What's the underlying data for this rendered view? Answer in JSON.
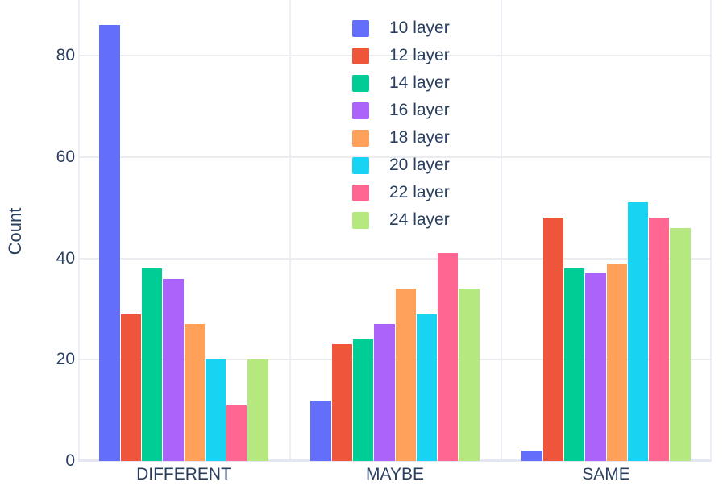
{
  "chart_data": {
    "type": "bar",
    "bar_mode": "group",
    "title": "",
    "xlabel": "",
    "ylabel": "Count",
    "categories": [
      "DIFFERENT",
      "MAYBE",
      "SAME"
    ],
    "series": [
      {
        "name": "10 layer",
        "color": "#636EFA",
        "values": [
          86,
          12,
          2
        ]
      },
      {
        "name": "12 layer",
        "color": "#EF553B",
        "values": [
          29,
          23,
          48
        ]
      },
      {
        "name": "14 layer",
        "color": "#00CC96",
        "values": [
          38,
          24,
          38
        ]
      },
      {
        "name": "16 layer",
        "color": "#AB63FA",
        "values": [
          36,
          27,
          37
        ]
      },
      {
        "name": "18 layer",
        "color": "#FFA15A",
        "values": [
          27,
          34,
          39
        ]
      },
      {
        "name": "20 layer",
        "color": "#19D3F3",
        "values": [
          20,
          29,
          51
        ]
      },
      {
        "name": "22 layer",
        "color": "#FF6692",
        "values": [
          11,
          41,
          48
        ]
      },
      {
        "name": "24 layer",
        "color": "#B6E880",
        "values": [
          20,
          34,
          46
        ]
      }
    ],
    "yticks": [
      0,
      20,
      40,
      60,
      80
    ],
    "ylim": [
      0,
      91
    ],
    "grid": true,
    "legend_position": "top-center"
  },
  "colors": {
    "text": "#2a3f5f",
    "grid": "#ebecf0",
    "zeroline": "#e4e6f3",
    "separator": "#eeeff6",
    "background": "#ffffff"
  }
}
